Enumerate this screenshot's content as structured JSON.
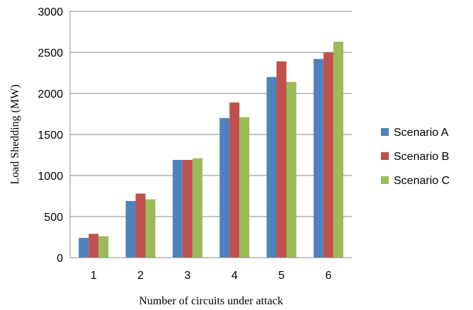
{
  "chart_data": {
    "type": "bar",
    "title": "",
    "xlabel": "Number of circuits under attack",
    "ylabel": "Load Shedding (MW)",
    "categories": [
      "1",
      "2",
      "3",
      "4",
      "5",
      "6"
    ],
    "ylim": [
      0,
      3000
    ],
    "yticks": [
      "0",
      "500",
      "1000",
      "1500",
      "2000",
      "2500",
      "3000"
    ],
    "grid": true,
    "legend_position": "right",
    "series": [
      {
        "name": "Scenario A",
        "color": "#4F81BD",
        "values": [
          240,
          690,
          1190,
          1700,
          2200,
          2420
        ]
      },
      {
        "name": "Scenario B",
        "color": "#C0504D",
        "values": [
          290,
          780,
          1190,
          1890,
          2390,
          2500
        ]
      },
      {
        "name": "Scenario C",
        "color": "#9BBB59",
        "values": [
          260,
          710,
          1210,
          1710,
          2140,
          2630
        ]
      }
    ]
  }
}
